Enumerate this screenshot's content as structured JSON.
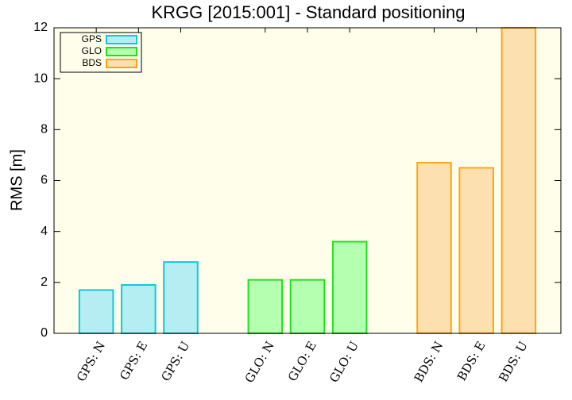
{
  "chart_data": {
    "type": "bar",
    "title": "KRGG [2015:001] - Standard positioning",
    "y_label": "RMS [m]",
    "categories": [
      "GPS: N",
      "GPS: E",
      "GPS: U",
      null,
      "GLO: N",
      "GLO: E",
      "GLO: U",
      null,
      "BDS: N",
      "BDS: E",
      "BDS: U"
    ],
    "series": [
      {
        "name": "GPS",
        "color": "#10c8d8",
        "fill_color": "#b4eef2",
        "values": [
          1.7,
          1.9,
          2.8,
          null,
          null,
          null,
          null,
          null,
          null,
          null,
          null
        ]
      },
      {
        "name": "GLO",
        "color": "#20e020",
        "fill_color": "#b4ffb0",
        "values": [
          null,
          null,
          null,
          null,
          2.1,
          2.1,
          3.6,
          null,
          null,
          null,
          null
        ]
      },
      {
        "name": "BDS",
        "color": "#ffa418",
        "fill_color": "#fce0b0",
        "values": [
          null,
          null,
          null,
          null,
          null,
          null,
          null,
          null,
          6.7,
          6.5,
          12
        ]
      }
    ],
    "ylim": [
      0,
      12
    ],
    "yticks": [
      0,
      2,
      4,
      6,
      8,
      10,
      12
    ],
    "legend": "top-left",
    "background": "#fffeea"
  }
}
